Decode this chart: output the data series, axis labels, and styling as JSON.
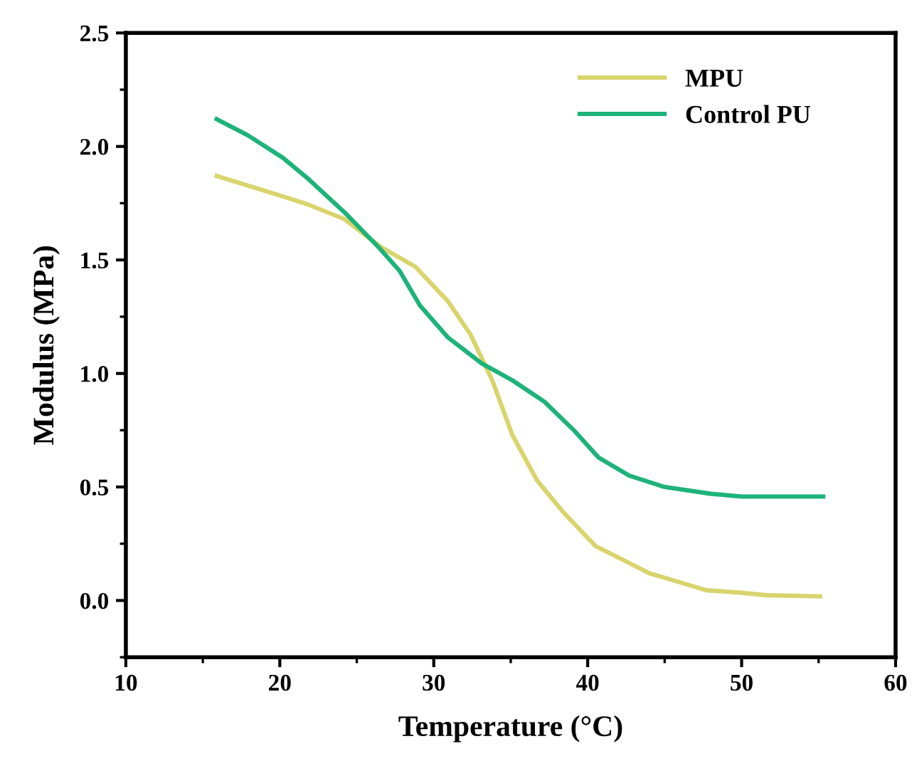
{
  "chart_data": {
    "type": "line",
    "xlabel": "Temperature (°C)",
    "ylabel": "Modulus (MPa)",
    "xlim": [
      10,
      60
    ],
    "xticks": [
      10,
      20,
      30,
      40,
      50,
      60
    ],
    "ylim": [
      -0.25,
      2.5
    ],
    "yticks": [
      {
        "value": 0.0,
        "label": "0.0"
      },
      {
        "value": 0.5,
        "label": "0.5"
      },
      {
        "value": 1.0,
        "label": "1.0"
      },
      {
        "value": 1.5,
        "label": "1.5"
      },
      {
        "value": 2.0,
        "label": "2.0"
      },
      {
        "value": 2.5,
        "label": "2.5"
      }
    ],
    "grid": false,
    "legend": "top right",
    "marker": "none",
    "line_style": "solid",
    "series": [
      {
        "name": "MPU",
        "color": "#d9d46c",
        "x": [
          15.9,
          20.2,
          21.8,
          24.2,
          26.5,
          28.8,
          30.9,
          32.4,
          33.8,
          35.1,
          36.7,
          38.4,
          40.5,
          42.7,
          44.0,
          45.7,
          47.7,
          50.0,
          51.6,
          55.1
        ],
        "values": [
          1.87,
          1.78,
          1.745,
          1.68,
          1.56,
          1.47,
          1.32,
          1.17,
          0.97,
          0.73,
          0.53,
          0.39,
          0.24,
          0.165,
          0.12,
          0.086,
          0.045,
          0.034,
          0.023,
          0.018
        ]
      },
      {
        "name": "Control PU",
        "color": "#1db37a",
        "x": [
          15.9,
          17.9,
          20.2,
          21.8,
          24.2,
          26.5,
          27.8,
          29.1,
          30.9,
          33.1,
          35.1,
          37.2,
          39.1,
          40.7,
          42.7,
          45.0,
          48.0,
          50.0,
          55.3
        ],
        "values": [
          2.12,
          2.05,
          1.95,
          1.86,
          1.71,
          1.55,
          1.45,
          1.3,
          1.16,
          1.045,
          0.97,
          0.875,
          0.75,
          0.63,
          0.55,
          0.5,
          0.47,
          0.458,
          0.458
        ]
      }
    ]
  }
}
